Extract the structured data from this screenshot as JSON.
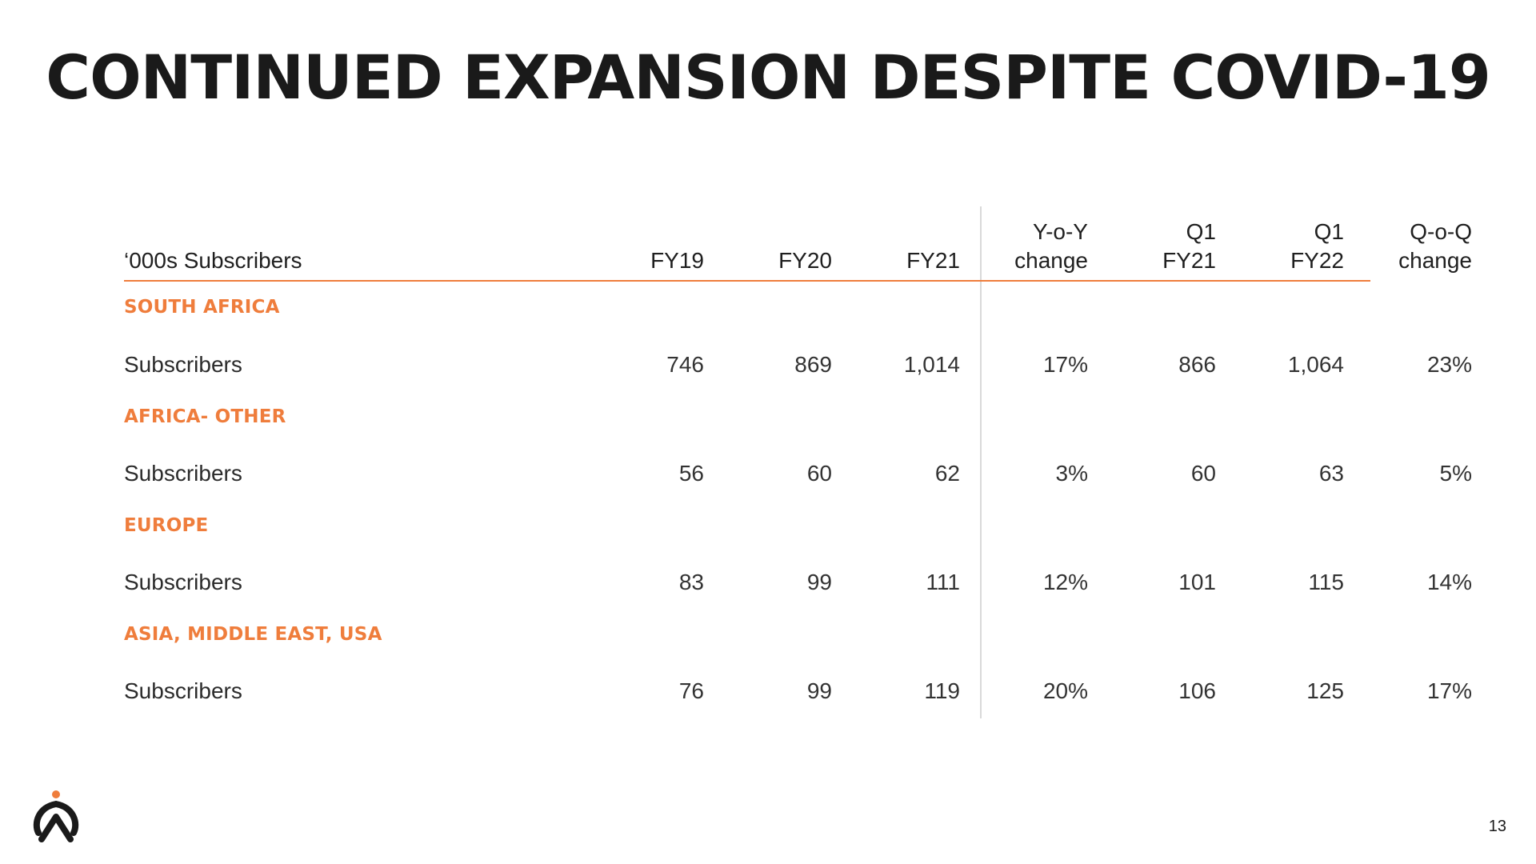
{
  "title": "CONTINUED EXPANSION DESPITE COVID-19",
  "table": {
    "header": {
      "label": "‘000s Subscribers",
      "fy19": "FY19",
      "fy20": "FY20",
      "fy21": "FY21",
      "yoy_line1": "Y-o-Y",
      "yoy_line2": "change",
      "q1fy21_line1": "Q1",
      "q1fy21_line2": "FY21",
      "q1fy22_line1": "Q1",
      "q1fy22_line2": "FY22",
      "qoq_line1": "Q-o-Q",
      "qoq_line2": "change"
    },
    "sections": [
      {
        "region": "SOUTH AFRICA",
        "row": {
          "label": "Subscribers",
          "fy19": "746",
          "fy20": "869",
          "fy21": "1,014",
          "yoy": "17%",
          "q1fy21": "866",
          "q1fy22": "1,064",
          "qoq": "23%"
        }
      },
      {
        "region": "AFRICA- OTHER",
        "row": {
          "label": "Subscribers",
          "fy19": "56",
          "fy20": "60",
          "fy21": "62",
          "yoy": "3%",
          "q1fy21": "60",
          "q1fy22": "63",
          "qoq": "5%"
        }
      },
      {
        "region": "EUROPE",
        "row": {
          "label": "Subscribers",
          "fy19": "83",
          "fy20": "99",
          "fy21": "111",
          "yoy": "12%",
          "q1fy21": "101",
          "q1fy22": "115",
          "qoq": "14%"
        }
      },
      {
        "region": "ASIA, MIDDLE EAST, USA",
        "row": {
          "label": "Subscribers",
          "fy19": "76",
          "fy20": "99",
          "fy21": "119",
          "yoy": "20%",
          "q1fy21": "106",
          "q1fy22": "125",
          "qoq": "17%"
        }
      }
    ]
  },
  "footer": {
    "logo_icon": "brand-logo-icon",
    "page_number": "13"
  },
  "colors": {
    "accent": "#ef7d3c",
    "title": "#1a1a1a",
    "divider": "#d9d9d9"
  }
}
